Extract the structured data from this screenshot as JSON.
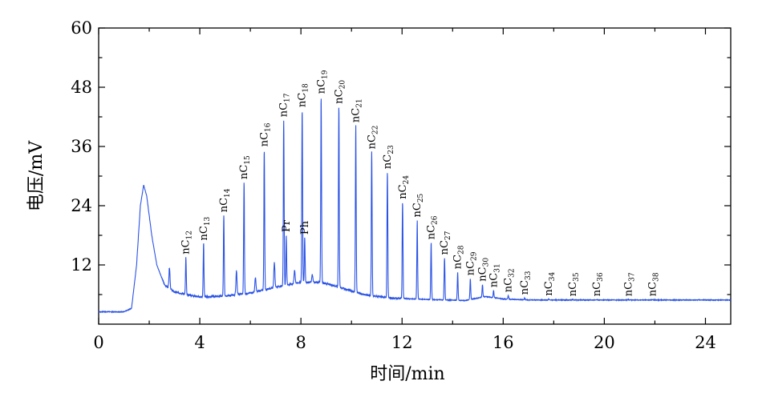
{
  "chart_data": {
    "type": "line",
    "title": "",
    "xlabel": "时间/min",
    "ylabel": "电压/mV",
    "xlim": [
      0,
      25
    ],
    "ylim": [
      0,
      60
    ],
    "xticks": [
      0,
      4,
      8,
      12,
      16,
      20,
      24
    ],
    "yticks": [
      12,
      24,
      36,
      48,
      60
    ],
    "xtick_labels": [
      "0",
      "4",
      "8",
      "12",
      "16",
      "20",
      24
    ],
    "ytick_labels": [
      "12",
      "24",
      "36",
      "48",
      "60"
    ],
    "grid": false,
    "line_color": "#2a52e6",
    "baseline": [
      [
        0,
        2.5
      ],
      [
        1.0,
        2.5
      ],
      [
        1.3,
        3.2
      ],
      [
        1.5,
        12
      ],
      [
        1.65,
        24
      ],
      [
        1.78,
        28.2
      ],
      [
        1.9,
        26
      ],
      [
        2.1,
        18
      ],
      [
        2.3,
        12
      ],
      [
        2.6,
        8
      ],
      [
        3.0,
        6.5
      ],
      [
        4.0,
        5.5
      ],
      [
        5.0,
        5.7
      ],
      [
        6.0,
        6.3
      ],
      [
        7.0,
        7.5
      ],
      [
        8.0,
        8.5
      ],
      [
        8.8,
        8.5
      ],
      [
        9.5,
        7.5
      ],
      [
        10.5,
        6.0
      ],
      [
        11.5,
        5.3
      ],
      [
        13.0,
        5.0
      ],
      [
        14.5,
        4.8
      ],
      [
        15.3,
        5.6
      ],
      [
        16.0,
        5.1
      ],
      [
        17.0,
        4.9
      ],
      [
        20.0,
        4.9
      ],
      [
        25.0,
        4.9
      ]
    ],
    "peaks": [
      {
        "name": "nC12",
        "base": "nC",
        "sub": "12",
        "x": 3.45,
        "y": 13.5
      },
      {
        "name": "nC13",
        "base": "nC",
        "sub": "13",
        "x": 4.15,
        "y": 16.3
      },
      {
        "name": "nC14",
        "base": "nC",
        "sub": "14",
        "x": 4.95,
        "y": 22.0
      },
      {
        "name": "nC15",
        "base": "nC",
        "sub": "15",
        "x": 5.75,
        "y": 28.7
      },
      {
        "name": "nC16",
        "base": "nC",
        "sub": "16",
        "x": 6.55,
        "y": 35.3
      },
      {
        "name": "nC17",
        "base": "nC",
        "sub": "17",
        "x": 7.32,
        "y": 41.3
      },
      {
        "name": "Pr",
        "base": "Pr",
        "sub": "",
        "x": 7.42,
        "y": 18.0
      },
      {
        "name": "nC18",
        "base": "nC",
        "sub": "18",
        "x": 8.05,
        "y": 43.3
      },
      {
        "name": "Ph",
        "base": "Ph",
        "sub": "",
        "x": 8.15,
        "y": 17.5
      },
      {
        "name": "nC19",
        "base": "nC",
        "sub": "19",
        "x": 8.8,
        "y": 46.0
      },
      {
        "name": "nC20",
        "base": "nC",
        "sub": "20",
        "x": 9.5,
        "y": 44.0
      },
      {
        "name": "nC21",
        "base": "nC",
        "sub": "21",
        "x": 10.17,
        "y": 40.2
      },
      {
        "name": "nC22",
        "base": "nC",
        "sub": "22",
        "x": 10.8,
        "y": 34.8
      },
      {
        "name": "nC23",
        "base": "nC",
        "sub": "23",
        "x": 11.42,
        "y": 30.8
      },
      {
        "name": "nC24",
        "base": "nC",
        "sub": "24",
        "x": 12.02,
        "y": 24.7
      },
      {
        "name": "nC25",
        "base": "nC",
        "sub": "25",
        "x": 12.6,
        "y": 21.0
      },
      {
        "name": "nC26",
        "base": "nC",
        "sub": "26",
        "x": 13.15,
        "y": 16.5
      },
      {
        "name": "nC27",
        "base": "nC",
        "sub": "27",
        "x": 13.68,
        "y": 13.4
      },
      {
        "name": "nC28",
        "base": "nC",
        "sub": "28",
        "x": 14.2,
        "y": 10.5
      },
      {
        "name": "nC29",
        "base": "nC",
        "sub": "29",
        "x": 14.7,
        "y": 9.2
      },
      {
        "name": "nC30",
        "base": "nC",
        "sub": "30",
        "x": 15.18,
        "y": 8.0
      },
      {
        "name": "nC31",
        "base": "nC",
        "sub": "31",
        "x": 15.62,
        "y": 6.8
      },
      {
        "name": "nC32",
        "base": "nC",
        "sub": "32",
        "x": 16.2,
        "y": 5.8
      },
      {
        "name": "nC33",
        "base": "nC",
        "sub": "33",
        "x": 16.85,
        "y": 5.3
      },
      {
        "name": "nC34",
        "base": "nC",
        "sub": "34",
        "x": 17.8,
        "y": 5.1
      },
      {
        "name": "nC35",
        "base": "nC",
        "sub": "35",
        "x": 18.75,
        "y": 5.0
      },
      {
        "name": "nC36",
        "base": "nC",
        "sub": "36",
        "x": 19.7,
        "y": 5.0
      },
      {
        "name": "nC37",
        "base": "nC",
        "sub": "37",
        "x": 20.95,
        "y": 5.0
      },
      {
        "name": "nC38",
        "base": "nC",
        "sub": "38",
        "x": 21.9,
        "y": 5.0
      }
    ],
    "minor_peaks": [
      {
        "x": 2.8,
        "y": 11.5
      },
      {
        "x": 5.45,
        "y": 10.8
      },
      {
        "x": 6.2,
        "y": 9.5
      },
      {
        "x": 6.95,
        "y": 12.5
      },
      {
        "x": 7.75,
        "y": 11.0
      },
      {
        "x": 8.45,
        "y": 10.0
      }
    ]
  }
}
